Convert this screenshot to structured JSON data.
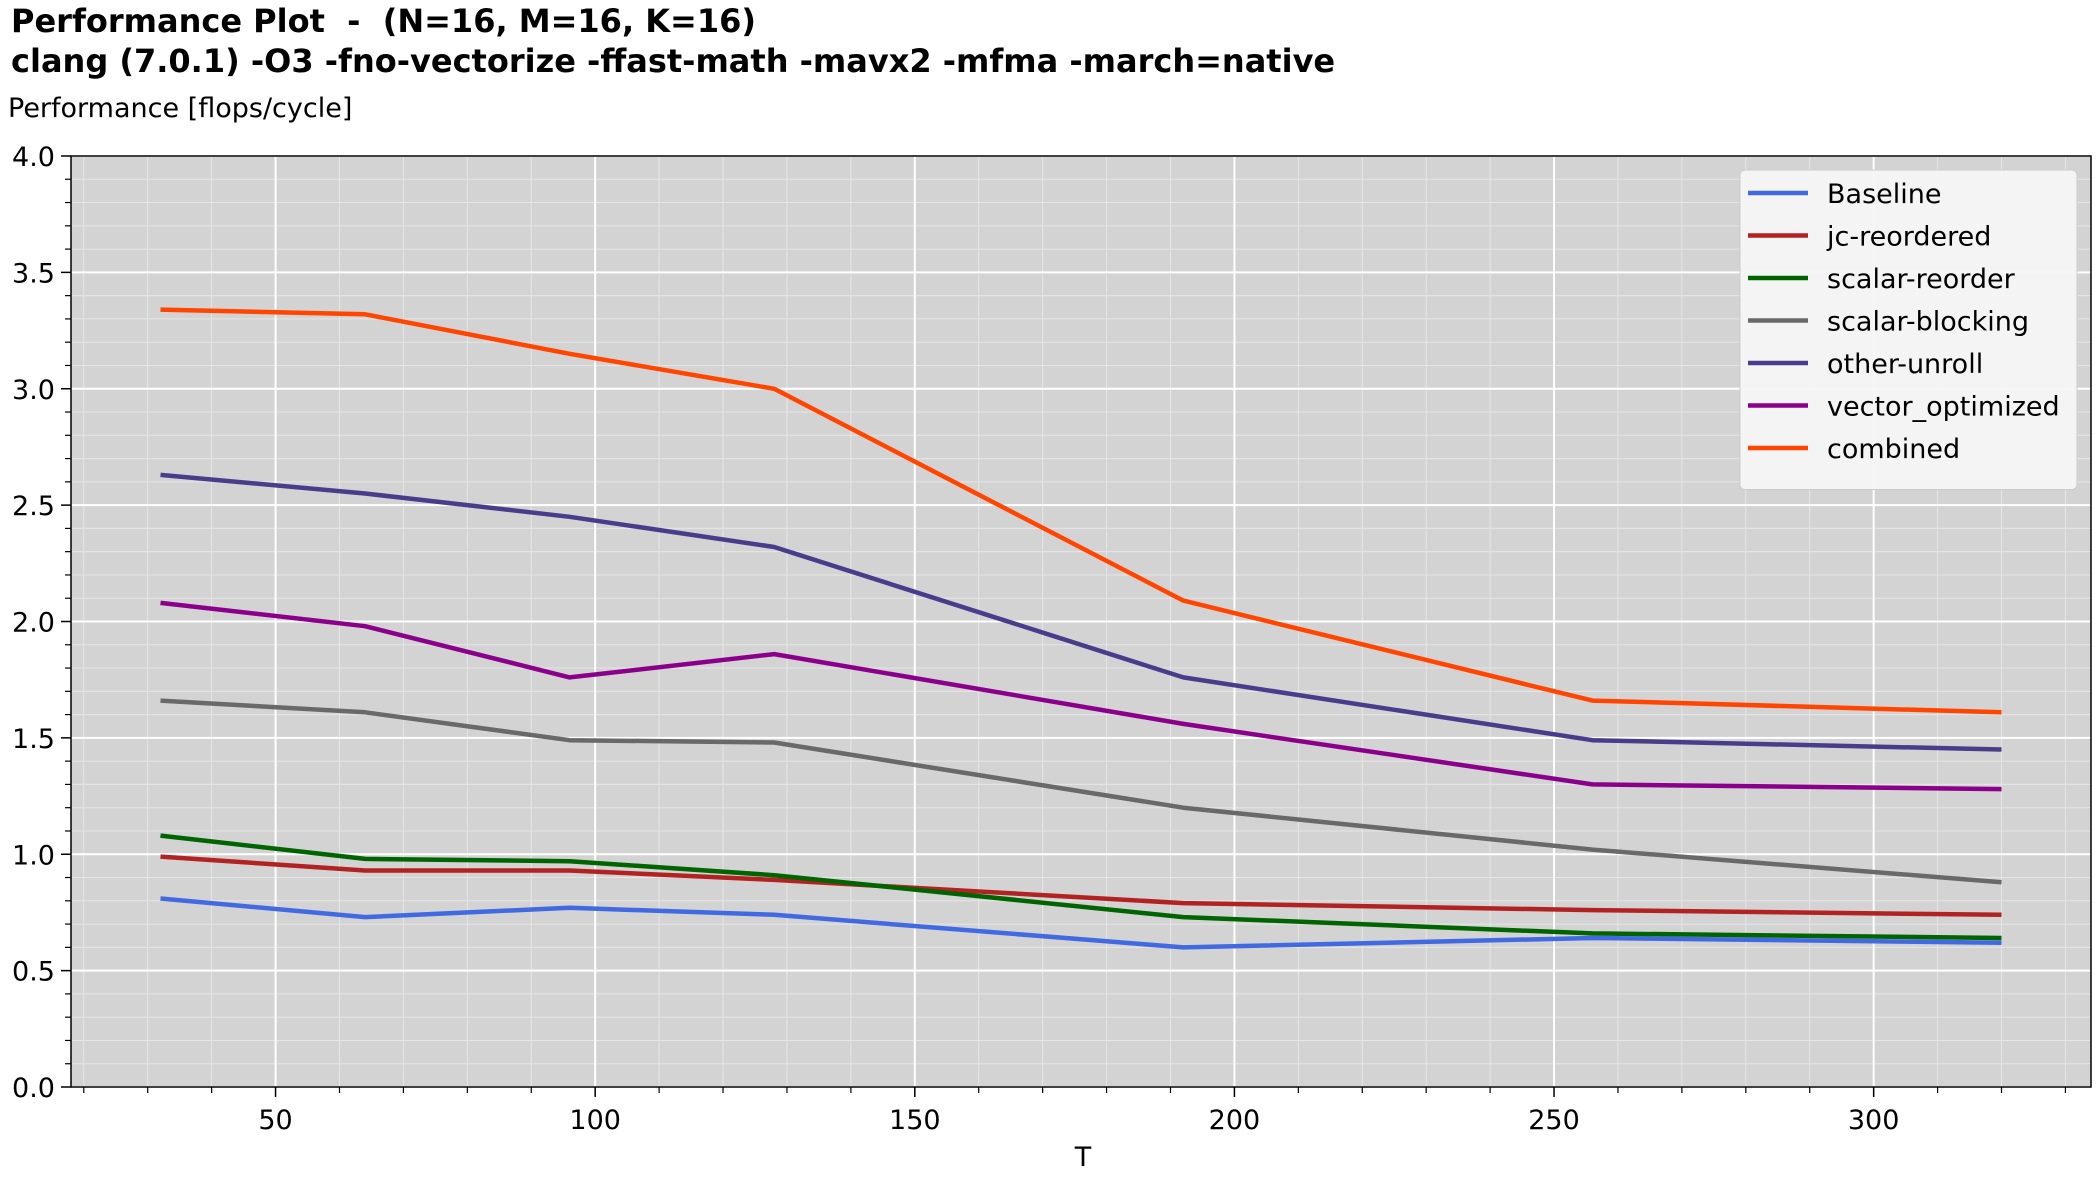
{
  "chart_data": {
    "type": "line",
    "title": "Performance Plot  -  (N=16, M=16, K=16)",
    "subtitle": "clang (7.0.1) -O3 -fno-vectorize -ffast-math -mavx2 -mfma -march=native",
    "xlabel": "T",
    "ylabel": "Performance [flops/cycle]",
    "xlim": [
      18,
      334
    ],
    "ylim": [
      0,
      4.0
    ],
    "x_ticks": [
      50,
      100,
      150,
      200,
      250,
      300
    ],
    "x_tick_labels": [
      "50",
      "100",
      "150",
      "200",
      "250",
      "300"
    ],
    "y_ticks": [
      0.0,
      0.5,
      1.0,
      1.5,
      2.0,
      2.5,
      3.0,
      3.5,
      4.0
    ],
    "y_tick_labels": [
      "0.0",
      "0.5",
      "1.0",
      "1.5",
      "2.0",
      "2.5",
      "3.0",
      "3.5",
      "4.0"
    ],
    "grid": true,
    "legend_position": "top-right",
    "x": [
      32,
      64,
      96,
      128,
      192,
      256,
      320
    ],
    "series": [
      {
        "name": "Baseline",
        "color": "#4169e1",
        "values": [
          0.81,
          0.73,
          0.77,
          0.74,
          0.6,
          0.64,
          0.62
        ]
      },
      {
        "name": "jc-reordered",
        "color": "#b22222",
        "values": [
          0.99,
          0.93,
          0.93,
          0.89,
          0.79,
          0.76,
          0.74
        ]
      },
      {
        "name": "scalar-reorder",
        "color": "#006400",
        "values": [
          1.08,
          0.98,
          0.97,
          0.91,
          0.73,
          0.66,
          0.64
        ]
      },
      {
        "name": "scalar-blocking",
        "color": "#696969",
        "values": [
          1.66,
          1.61,
          1.49,
          1.48,
          1.2,
          1.02,
          0.88
        ]
      },
      {
        "name": "other-unroll",
        "color": "#483d8b",
        "values": [
          2.63,
          2.55,
          2.45,
          2.32,
          1.76,
          1.49,
          1.45
        ]
      },
      {
        "name": "vector_optimized",
        "color": "#8b008b",
        "values": [
          2.08,
          1.98,
          1.76,
          1.86,
          1.56,
          1.3,
          1.28
        ]
      },
      {
        "name": "combined",
        "color": "#ff4500",
        "values": [
          3.34,
          3.32,
          3.15,
          3.0,
          2.09,
          1.66,
          1.61
        ]
      }
    ]
  }
}
